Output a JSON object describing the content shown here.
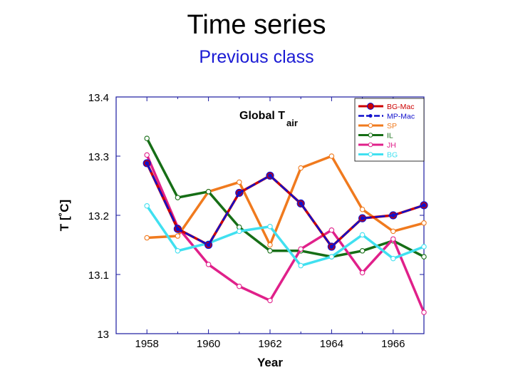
{
  "slide": {
    "title": "Time series",
    "subtitle": "Previous class"
  },
  "chart_data": {
    "type": "line",
    "xlabel": "Year",
    "ylabel": "T [˚C]",
    "annotation": {
      "main": "Global T",
      "sub": "air"
    },
    "xlim": [
      1957,
      1967
    ],
    "ylim": [
      13.0,
      13.4
    ],
    "xticks": [
      1958,
      1960,
      1962,
      1964,
      1966
    ],
    "yticks": [
      13,
      13.1,
      13.2,
      13.3,
      13.4
    ],
    "ytick_labels": [
      "13",
      "13.1",
      "13.2",
      "13.3",
      "13.4"
    ],
    "legend_position": "top-right",
    "grid": false,
    "x": [
      1958,
      1959,
      1960,
      1961,
      1962,
      1963,
      1964,
      1965,
      1966,
      1967
    ],
    "series": [
      {
        "name": "BG-Mac",
        "color": "#cc0000",
        "marker": "filled-large",
        "dash": "solid",
        "values": [
          13.288,
          13.177,
          13.15,
          13.238,
          13.267,
          13.22,
          13.147,
          13.195,
          13.2,
          13.217
        ]
      },
      {
        "name": "MP-Mac",
        "color": "#1010cc",
        "marker": "filled-small",
        "dash": "dashed",
        "values": [
          13.288,
          13.177,
          13.15,
          13.238,
          13.267,
          13.22,
          13.147,
          13.195,
          13.2,
          13.217
        ]
      },
      {
        "name": "SP",
        "color": "#f07a1e",
        "marker": "open",
        "dash": "solid",
        "values": [
          13.162,
          13.165,
          13.24,
          13.256,
          13.15,
          13.28,
          13.3,
          13.21,
          13.173,
          13.187
        ]
      },
      {
        "name": "IL",
        "color": "#166e16",
        "marker": "open",
        "dash": "solid",
        "values": [
          13.33,
          13.23,
          13.24,
          13.18,
          13.14,
          13.14,
          13.13,
          13.14,
          13.157,
          13.13
        ]
      },
      {
        "name": "JH",
        "color": "#e0208a",
        "marker": "open",
        "dash": "solid",
        "values": [
          13.302,
          13.18,
          13.117,
          13.08,
          13.056,
          13.143,
          13.175,
          13.103,
          13.16,
          13.036
        ]
      },
      {
        "name": "BG",
        "color": "#40e0f0",
        "marker": "open",
        "dash": "solid",
        "values": [
          13.216,
          13.14,
          13.153,
          13.173,
          13.181,
          13.115,
          13.13,
          13.167,
          13.127,
          13.147
        ]
      }
    ]
  }
}
